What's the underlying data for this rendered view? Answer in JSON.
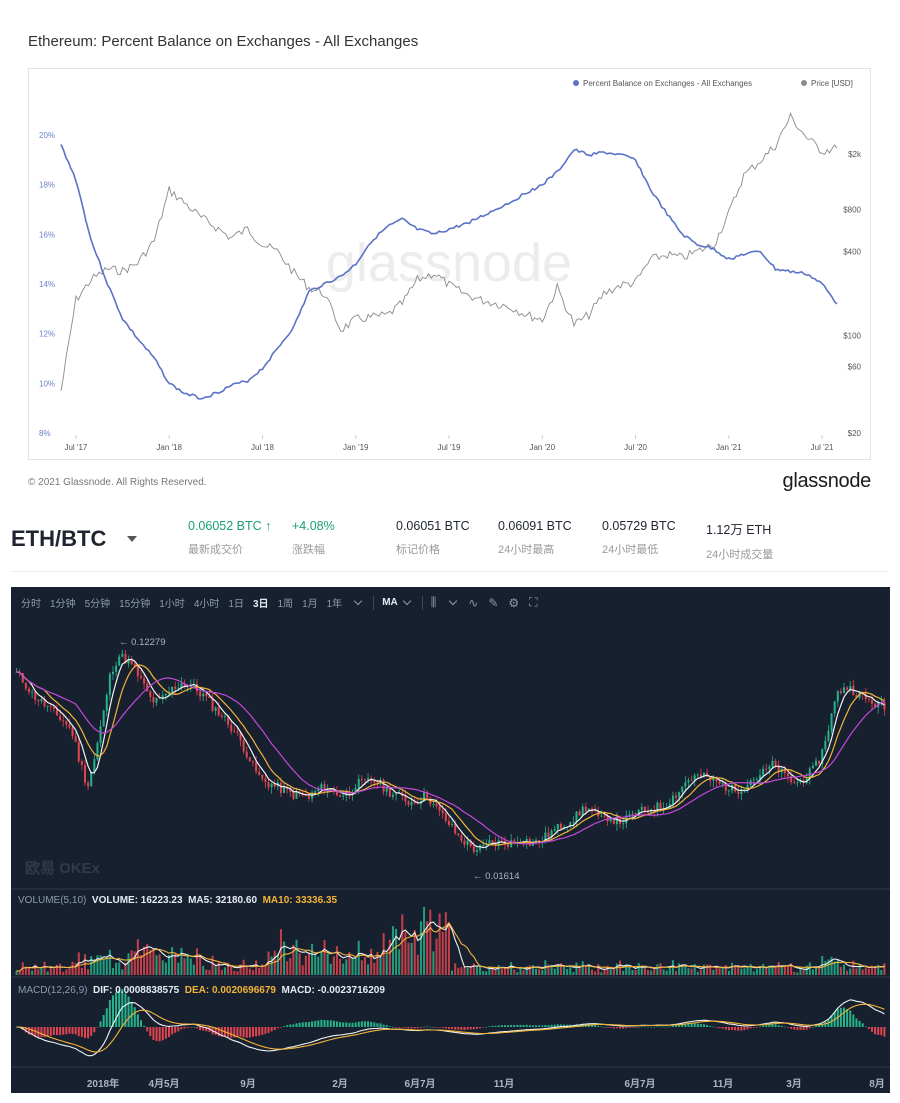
{
  "glassnode": {
    "title": "Ethereum: Percent Balance on Exchanges - All Exchanges",
    "watermark": "glassnode",
    "copyright": "© 2021 Glassnode. All Rights Reserved.",
    "logo": "glassnode",
    "colors": {
      "balance": "#5b73c6",
      "price": "#8a8a8a"
    }
  },
  "chart_data": [
    {
      "type": "line",
      "title": "Ethereum: Percent Balance on Exchanges - All Exchanges",
      "legend": [
        "Percent Balance on Exchanges - All Exchanges",
        "Price [USD]"
      ],
      "legend_position": "top-right",
      "x_ticks": [
        "Jul '17",
        "Jan '18",
        "Jul '18",
        "Jan '19",
        "Jul '19",
        "Jan '20",
        "Jul '20",
        "Jan '21",
        "Jul '21"
      ],
      "y_left_ticks": [
        "20%",
        "18%",
        "16%",
        "14%",
        "12%",
        "10%",
        "8%"
      ],
      "y_left_range": [
        8,
        20
      ],
      "y_right_ticks": [
        "$2k",
        "$800",
        "$400",
        "$100",
        "$60",
        "$20"
      ],
      "y_right_scale": "log",
      "series": [
        {
          "name": "Percent Balance on Exchanges - All Exchanges",
          "x": [
            2017.42,
            2017.5,
            2017.58,
            2017.67,
            2017.75,
            2017.83,
            2017.92,
            2018.0,
            2018.08,
            2018.17,
            2018.25,
            2018.33,
            2018.42,
            2018.5,
            2018.58,
            2018.67,
            2018.75,
            2018.83,
            2018.92,
            2019.0,
            2019.08,
            2019.17,
            2019.25,
            2019.33,
            2019.42,
            2019.5,
            2019.58,
            2019.67,
            2019.75,
            2019.83,
            2019.92,
            2020.0,
            2020.08,
            2020.17,
            2020.25,
            2020.33,
            2020.42,
            2020.5,
            2020.58,
            2020.67,
            2020.75,
            2020.83,
            2020.92,
            2021.0,
            2021.08,
            2021.17,
            2021.25,
            2021.33,
            2021.42,
            2021.5,
            2021.58
          ],
          "values": [
            19.6,
            18.2,
            15.8,
            14.0,
            12.6,
            11.8,
            11.0,
            10.0,
            9.6,
            9.4,
            9.6,
            9.9,
            10.1,
            10.6,
            11.4,
            12.3,
            13.7,
            14.0,
            14.3,
            14.8,
            15.7,
            16.3,
            16.6,
            16.2,
            16.0,
            16.2,
            16.4,
            16.7,
            17.0,
            17.3,
            17.7,
            18.0,
            18.5,
            19.4,
            19.2,
            19.3,
            19.2,
            19.0,
            17.8,
            16.8,
            16.0,
            15.6,
            15.4,
            15.0,
            15.2,
            15.3,
            14.6,
            14.5,
            14.4,
            14.0,
            13.2
          ]
        },
        {
          "name": "Price [USD]",
          "x": [
            2017.42,
            2017.5,
            2017.58,
            2017.67,
            2017.75,
            2017.83,
            2017.92,
            2018.0,
            2018.08,
            2018.17,
            2018.25,
            2018.33,
            2018.42,
            2018.5,
            2018.58,
            2018.67,
            2018.75,
            2018.83,
            2018.92,
            2019.0,
            2019.08,
            2019.17,
            2019.25,
            2019.33,
            2019.42,
            2019.5,
            2019.58,
            2019.67,
            2019.75,
            2019.83,
            2019.92,
            2020.0,
            2020.08,
            2020.17,
            2020.25,
            2020.33,
            2020.42,
            2020.5,
            2020.58,
            2020.67,
            2020.75,
            2020.83,
            2020.92,
            2021.0,
            2021.08,
            2021.17,
            2021.25,
            2021.33,
            2021.42,
            2021.5,
            2021.58
          ],
          "values": [
            40,
            180,
            250,
            300,
            290,
            330,
            480,
            1100,
            900,
            700,
            600,
            500,
            580,
            450,
            400,
            280,
            220,
            200,
            110,
            130,
            135,
            140,
            170,
            250,
            280,
            230,
            200,
            180,
            170,
            160,
            140,
            130,
            220,
            120,
            140,
            200,
            230,
            240,
            350,
            380,
            360,
            400,
            450,
            750,
            1400,
            1800,
            2300,
            3700,
            2600,
            2100,
            2200
          ]
        }
      ]
    },
    {
      "type": "candlestick",
      "title": "ETH/BTC 3日",
      "x_ticks": [
        "2018年",
        "4月5月",
        "9月",
        "2月",
        "6月7月",
        "11月",
        "6月7月",
        "11月",
        "3月",
        "8月"
      ],
      "annotations": {
        "high": "0.12279",
        "low": "0.01614"
      },
      "price_path": [
        0.085,
        0.078,
        0.07,
        0.066,
        0.062,
        0.058,
        0.055,
        0.05,
        0.038,
        0.03,
        0.04,
        0.058,
        0.087,
        0.1,
        0.096,
        0.088,
        0.077,
        0.067,
        0.065,
        0.07,
        0.075,
        0.078,
        0.077,
        0.072,
        0.068,
        0.062,
        0.058,
        0.053,
        0.048,
        0.042,
        0.036,
        0.032,
        0.031,
        0.03,
        0.029,
        0.028,
        0.028,
        0.027,
        0.029,
        0.03,
        0.029,
        0.028,
        0.028,
        0.031,
        0.031,
        0.032,
        0.031,
        0.029,
        0.028,
        0.027,
        0.026,
        0.027,
        0.028,
        0.025,
        0.023,
        0.021,
        0.019,
        0.018,
        0.017,
        0.017,
        0.018,
        0.018,
        0.018,
        0.018,
        0.019,
        0.018,
        0.018,
        0.019,
        0.02,
        0.021,
        0.022,
        0.023,
        0.025,
        0.024,
        0.022,
        0.023,
        0.022,
        0.022,
        0.023,
        0.024,
        0.024,
        0.025,
        0.025,
        0.027,
        0.029,
        0.032,
        0.033,
        0.033,
        0.032,
        0.031,
        0.03,
        0.029,
        0.03,
        0.032,
        0.033,
        0.035,
        0.037,
        0.034,
        0.032,
        0.031,
        0.033,
        0.035,
        0.04,
        0.053,
        0.07,
        0.076,
        0.073,
        0.069,
        0.066,
        0.064,
        0.062
      ]
    }
  ],
  "ticker": {
    "pair": "ETH/BTC",
    "stats": [
      {
        "value": "0.06052 BTC ↑",
        "label": "最新成交价",
        "tone": "up"
      },
      {
        "value": "+4.08%",
        "label": "涨跌幅",
        "tone": "up"
      },
      {
        "value": "0.06051 BTC",
        "label": "标记价格",
        "tone": ""
      },
      {
        "value": "0.06091 BTC",
        "label": "24小时最高",
        "tone": ""
      },
      {
        "value": "0.05729 BTC",
        "label": "24小时最低",
        "tone": ""
      },
      {
        "value": "1.12万 ETH",
        "label": "24小时成交量",
        "tone": ""
      }
    ]
  },
  "okx": {
    "toolbar": {
      "intervals": [
        "分时",
        "1分钟",
        "5分钟",
        "15分钟",
        "1小时",
        "4小时",
        "1日",
        "3日",
        "1周",
        "1月",
        "1年"
      ],
      "active": "3日",
      "indicator": "MA"
    },
    "watermark": "欧易 OKEx",
    "volume_panel": {
      "name": "VOLUME(5,10)",
      "volume_label": "VOLUME: 16223.23",
      "ma5_label": "MA5: 32180.60",
      "ma10_label": "MA10: 33336.35"
    },
    "macd_panel": {
      "name": "MACD(12,26,9)",
      "dif_label": "DIF: 0.0008838575",
      "dea_label": "DEA: 0.0020696679",
      "macd_label": "MACD: -0.0023716209"
    },
    "colors": {
      "up": "#25b38a",
      "down": "#e0454f",
      "ma_white": "#f1f1f1",
      "ma_yellow": "#f3b438",
      "ma_magenta": "#c348d8"
    }
  }
}
